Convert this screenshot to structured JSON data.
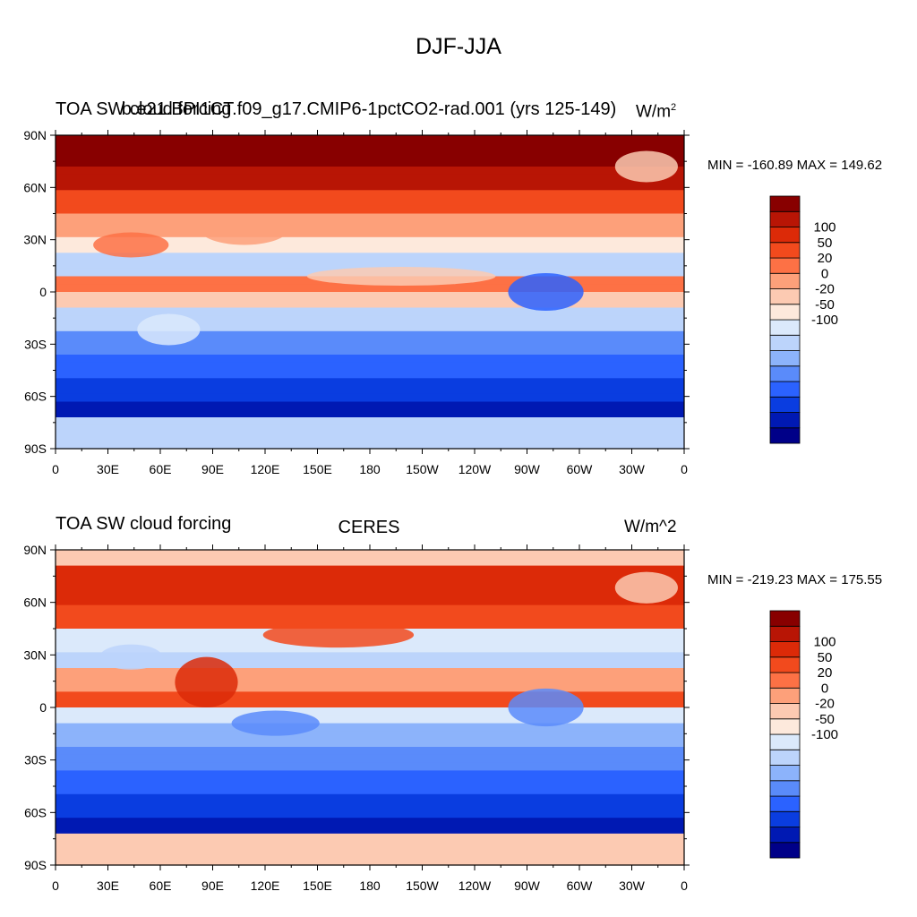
{
  "figure": {
    "title": "DJF-JJA"
  },
  "panels": [
    {
      "left_title": "TOA SW cloud forcing",
      "center_title": "b.e21.BPI1CT.f09_g17.CMIP6-1pctCO2-rad.001 (yrs 125-149)",
      "units": "W/m",
      "units_sup": "2",
      "minmax": "MIN = -160.89 MAX = 149.62"
    },
    {
      "left_title": "TOA SW cloud forcing",
      "center_title": "CERES",
      "units": "W/m^2",
      "units_sup": "",
      "minmax": "MIN = -219.23 MAX = 175.55"
    }
  ],
  "lat_labels": [
    "90N",
    "60N",
    "30N",
    "0",
    "30S",
    "60S",
    "90S"
  ],
  "lon_labels": [
    "0",
    "30E",
    "60E",
    "90E",
    "120E",
    "150E",
    "180",
    "150W",
    "120W",
    "90W",
    "60W",
    "30W",
    "0"
  ],
  "colorbar": {
    "colors": [
      "#000088",
      "#0019b3",
      "#0a3de0",
      "#2b62ff",
      "#5a8bfa",
      "#8cb3fb",
      "#bcd4fb",
      "#dbe9fb",
      "#fde9dc",
      "#fccab2",
      "#fda07a",
      "#fd7145",
      "#f24a1d",
      "#dc2a08",
      "#b81505",
      "#880000"
    ],
    "labels": [
      "100",
      "50",
      "20",
      "0",
      "-20",
      "-50",
      "-100"
    ]
  }
}
